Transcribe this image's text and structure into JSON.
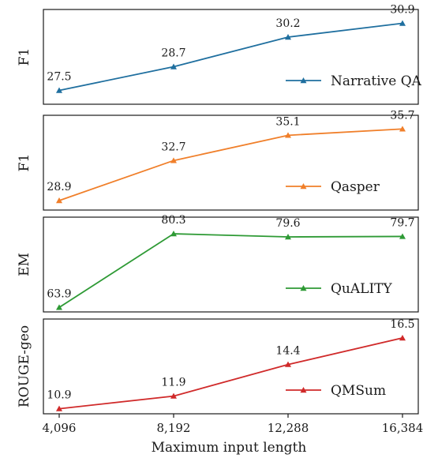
{
  "chart_data": [
    {
      "type": "line",
      "x": [
        4096,
        8192,
        12288,
        16384
      ],
      "xlabel": "Maximum input length",
      "ylabel": "F1",
      "series": [
        {
          "name": "Narrative QA",
          "values": [
            27.5,
            28.7,
            30.2,
            30.9
          ],
          "color": "#1f6f9f",
          "marker": "triangle"
        }
      ],
      "ylim": [
        26.8,
        31.6
      ],
      "legend": "lower-right"
    },
    {
      "type": "line",
      "x": [
        4096,
        8192,
        12288,
        16384
      ],
      "xlabel": "Maximum input length",
      "ylabel": "F1",
      "series": [
        {
          "name": "Qasper",
          "values": [
            28.9,
            32.7,
            35.1,
            35.7
          ],
          "color": "#f07f2a",
          "marker": "triangle"
        }
      ],
      "ylim": [
        28.0,
        37.0
      ],
      "legend": "lower-right"
    },
    {
      "type": "line",
      "x": [
        4096,
        8192,
        12288,
        16384
      ],
      "xlabel": "Maximum input length",
      "ylabel": "EM",
      "series": [
        {
          "name": "QuALITY",
          "values": [
            63.9,
            80.3,
            79.6,
            79.7
          ],
          "color": "#2e9a35",
          "marker": "triangle"
        }
      ],
      "ylim": [
        62.9,
        84.0
      ],
      "legend": "lower-right"
    },
    {
      "type": "line",
      "x": [
        4096,
        8192,
        12288,
        16384
      ],
      "xlabel": "Maximum input length",
      "ylabel": "ROUGE-geo",
      "series": [
        {
          "name": "QMSum",
          "values": [
            10.9,
            11.9,
            14.4,
            16.5
          ],
          "color": "#d02a2a",
          "marker": "triangle"
        }
      ],
      "ylim": [
        10.5,
        18.0
      ],
      "legend": "lower-right"
    }
  ],
  "x_tick_labels": [
    "4,096",
    "8,192",
    "12,288",
    "16,384"
  ],
  "x_axis_label": "Maximum input length"
}
